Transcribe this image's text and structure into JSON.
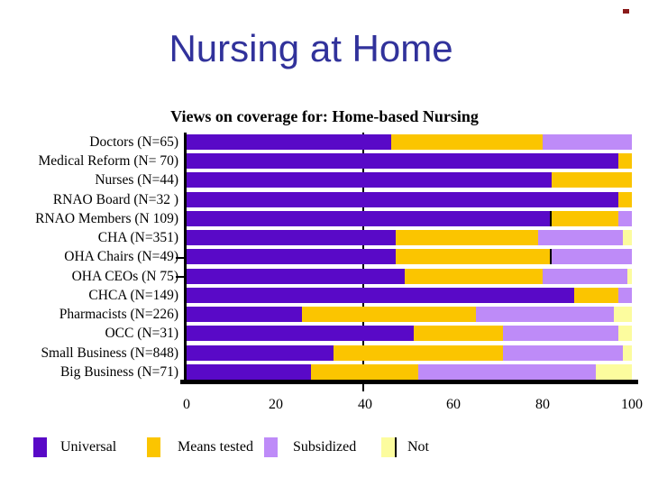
{
  "slide": {
    "title": "Nursing at Home",
    "title_color": "#31329b",
    "background_color": "#ffffff",
    "corner_mark_color": "#8a1a1a"
  },
  "chart_data": {
    "type": "bar",
    "orientation": "horizontal",
    "stacked": true,
    "title": "Views on coverage for: Home-based Nursing",
    "categories": [
      "Doctors (N=65)",
      "Medical Reform (N= 70)",
      "Nurses (N=44)",
      "RNAO Board (N=32 )",
      "RNAO Members (N 109)",
      "CHA (N=351)",
      "OHA Chairs (N=49)",
      "OHA CEOs (N 75)",
      "CHCA (N=149)",
      "Pharmacists (N=226)",
      "OCC (N=31)",
      "Small Business (N=848)",
      "Big Business (N=71)"
    ],
    "series": [
      {
        "name": "Universal",
        "color": "#5909c7",
        "values": [
          46,
          97,
          82,
          97,
          82,
          47,
          47,
          49,
          87,
          26,
          51,
          33,
          28
        ]
      },
      {
        "name": "Means tested",
        "color": "#fbc500",
        "values": [
          34,
          3,
          18,
          3,
          15,
          32,
          35,
          31,
          10,
          39,
          20,
          38,
          24
        ]
      },
      {
        "name": "Subsidized",
        "color": "#be8bf8",
        "values": [
          20,
          0,
          0,
          0,
          3,
          19,
          18,
          19,
          3,
          31,
          26,
          27,
          40
        ]
      },
      {
        "name": "Not",
        "color": "#fcfc9e",
        "values": [
          0,
          0,
          0,
          0,
          0,
          2,
          0,
          1,
          0,
          4,
          3,
          2,
          8
        ]
      }
    ],
    "xlim": [
      0,
      100
    ],
    "x_ticks": [
      "0",
      "20",
      "40",
      "60",
      "80",
      "100"
    ],
    "gridline_at": 40,
    "grid": "single vertical line at 40",
    "legend_position": "bottom",
    "dividers": [
      {
        "row": 4,
        "segment": 0
      },
      {
        "row": 6,
        "segment": 1
      }
    ],
    "extra_axis_tick_rows": [
      6,
      7
    ]
  },
  "legend": {
    "items": [
      {
        "label": "Universal",
        "color": "#5909c7"
      },
      {
        "label": "Means tested",
        "color": "#fbc500"
      },
      {
        "label": "Subsidized",
        "color": "#be8bf8"
      },
      {
        "label": "Not",
        "color": "#fcfc9e"
      }
    ]
  }
}
